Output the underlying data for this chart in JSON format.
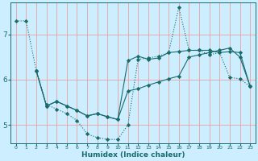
{
  "xlabel": "Humidex (Indice chaleur)",
  "bg_color": "#cceeff",
  "grid_color": "#e8a0a0",
  "line_color": "#1a6b6b",
  "xlim": [
    -0.5,
    23.5
  ],
  "ylim": [
    4.6,
    7.7
  ],
  "yticks": [
    5,
    6,
    7
  ],
  "xticks": [
    0,
    1,
    2,
    3,
    4,
    5,
    6,
    7,
    8,
    9,
    10,
    11,
    12,
    13,
    14,
    15,
    16,
    17,
    18,
    19,
    20,
    21,
    22,
    23
  ],
  "line1_x": [
    0,
    1,
    2,
    3,
    4,
    5,
    6,
    7,
    8,
    9,
    10,
    11,
    12,
    13,
    14,
    15,
    16,
    17,
    18,
    19,
    20,
    21,
    22,
    23
  ],
  "line1_y": [
    7.3,
    7.3,
    6.2,
    5.45,
    5.35,
    5.25,
    5.1,
    4.8,
    4.72,
    4.68,
    4.68,
    5.0,
    6.45,
    6.48,
    6.52,
    6.6,
    7.6,
    6.65,
    6.65,
    6.55,
    6.6,
    6.05,
    6.02,
    5.85
  ],
  "line2_x": [
    2,
    3,
    4,
    5,
    6,
    7,
    8,
    9,
    10,
    11,
    12,
    13,
    14,
    15,
    16,
    17,
    18,
    19,
    20,
    21,
    22,
    23
  ],
  "line2_y": [
    6.2,
    5.42,
    5.52,
    5.42,
    5.32,
    5.2,
    5.25,
    5.18,
    5.12,
    6.42,
    6.52,
    6.45,
    6.48,
    6.6,
    6.62,
    6.65,
    6.65,
    6.65,
    6.6,
    6.62,
    6.6,
    5.85
  ],
  "line3_x": [
    2,
    3,
    4,
    5,
    6,
    7,
    8,
    9,
    10,
    11,
    12,
    13,
    14,
    15,
    16,
    17,
    18,
    19,
    20,
    21,
    22,
    23
  ],
  "line3_y": [
    6.2,
    5.42,
    5.52,
    5.42,
    5.32,
    5.2,
    5.25,
    5.18,
    5.12,
    5.75,
    5.8,
    5.88,
    5.95,
    6.02,
    6.08,
    6.5,
    6.55,
    6.6,
    6.65,
    6.7,
    6.5,
    5.85
  ]
}
